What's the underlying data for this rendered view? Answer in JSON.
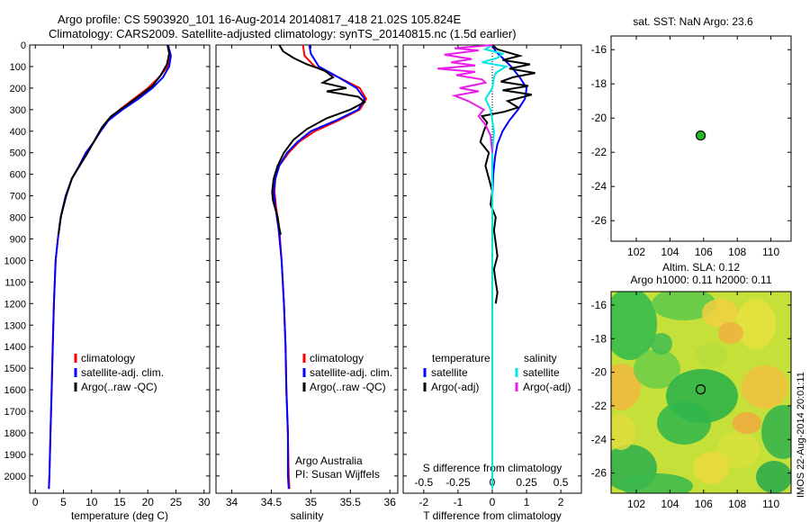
{
  "header": {
    "line1": "Argo profile: CS 5903920_101 16-Aug-2014 20140817_418 21.02S 105.824E",
    "line2": "Climatology: CARS2009. Satellite-adjusted climatology: synTS_20140815.nc (1.5d earlier)"
  },
  "watermark": "IMOS 22-Aug-2014 20:01:11",
  "colors": {
    "climatology": "#ff0000",
    "satellite": "#0000ff",
    "argo": "#000000",
    "sal_satellite": "#00e5e5",
    "sal_argo": "#e81ee8",
    "marker": "#22bb22"
  },
  "chart_data": [
    {
      "type": "line",
      "xlabel": "temperature (deg C)",
      "ylabel": "",
      "xlim": [
        -1,
        31
      ],
      "ylim": [
        2080,
        0
      ],
      "xticks": [
        "0",
        "5",
        "10",
        "15",
        "20",
        "25",
        "30"
      ],
      "yticks": [
        "0",
        "100",
        "200",
        "300",
        "400",
        "500",
        "600",
        "700",
        "800",
        "900",
        "1000",
        "1100",
        "1200",
        "1300",
        "1400",
        "1500",
        "1600",
        "1700",
        "1800",
        "1900",
        "2000"
      ],
      "legend": [
        "climatology",
        "satellite-adj. clim.",
        "Argo(..raw -QC)"
      ],
      "legend_position": "lower-center",
      "series": [
        {
          "name": "climatology",
          "color": "#ff0000",
          "points": [
            [
              23.6,
              0
            ],
            [
              23.9,
              50
            ],
            [
              23.5,
              100
            ],
            [
              22.0,
              150
            ],
            [
              20.0,
              200
            ],
            [
              17.5,
              250
            ],
            [
              15.0,
              300
            ],
            [
              12.8,
              350
            ],
            [
              11.5,
              400
            ],
            [
              10.4,
              450
            ],
            [
              9.0,
              500
            ],
            [
              7.8,
              560
            ],
            [
              6.5,
              620
            ],
            [
              5.4,
              700
            ],
            [
              4.5,
              800
            ],
            [
              4.0,
              900
            ],
            [
              3.6,
              1000
            ],
            [
              3.3,
              1200
            ],
            [
              3.1,
              1400
            ],
            [
              2.9,
              1600
            ],
            [
              2.7,
              1800
            ],
            [
              2.5,
              2000
            ],
            [
              2.4,
              2060
            ]
          ]
        },
        {
          "name": "satellite-adj. clim.",
          "color": "#0000ff",
          "points": [
            [
              23.6,
              0
            ],
            [
              24.1,
              50
            ],
            [
              23.8,
              100
            ],
            [
              22.7,
              150
            ],
            [
              20.8,
              200
            ],
            [
              18.3,
              250
            ],
            [
              15.5,
              300
            ],
            [
              13.0,
              350
            ],
            [
              11.6,
              400
            ],
            [
              10.4,
              450
            ],
            [
              9.0,
              500
            ],
            [
              7.8,
              560
            ],
            [
              6.5,
              620
            ],
            [
              5.4,
              700
            ],
            [
              4.5,
              800
            ],
            [
              4.0,
              900
            ],
            [
              3.6,
              1000
            ],
            [
              3.3,
              1200
            ],
            [
              3.1,
              1400
            ],
            [
              2.9,
              1600
            ],
            [
              2.7,
              1800
            ],
            [
              2.5,
              2000
            ],
            [
              2.4,
              2060
            ]
          ]
        },
        {
          "name": "Argo(..raw -QC)",
          "color": "#000000",
          "points": [
            [
              23.5,
              0
            ],
            [
              23.8,
              40
            ],
            [
              23.4,
              90
            ],
            [
              22.3,
              140
            ],
            [
              20.8,
              190
            ],
            [
              18.8,
              230
            ],
            [
              16.2,
              280
            ],
            [
              13.5,
              330
            ],
            [
              11.9,
              380
            ],
            [
              10.6,
              440
            ],
            [
              9.3,
              500
            ],
            [
              7.9,
              560
            ],
            [
              6.5,
              620
            ],
            [
              5.5,
              700
            ],
            [
              4.6,
              790
            ],
            [
              4.1,
              880
            ]
          ]
        }
      ]
    },
    {
      "type": "line",
      "xlabel": "salinity",
      "ylabel": "",
      "xlim": [
        33.8,
        36.1
      ],
      "ylim": [
        2080,
        0
      ],
      "xticks": [
        "34",
        "34.5",
        "35",
        "35.5",
        "36"
      ],
      "legend": [
        "climatology",
        "satellite-adj. clim.",
        "Argo(..raw -QC)"
      ],
      "legend_position": "lower-right",
      "annotations": [
        "Argo Australia",
        "PI: Susan Wijffels"
      ],
      "series": [
        {
          "name": "climatology",
          "color": "#ff0000",
          "points": [
            [
              34.9,
              0
            ],
            [
              34.92,
              50
            ],
            [
              35.05,
              100
            ],
            [
              35.35,
              150
            ],
            [
              35.62,
              200
            ],
            [
              35.7,
              250
            ],
            [
              35.62,
              300
            ],
            [
              35.35,
              350
            ],
            [
              35.05,
              400
            ],
            [
              34.85,
              450
            ],
            [
              34.72,
              500
            ],
            [
              34.6,
              560
            ],
            [
              34.55,
              620
            ],
            [
              34.54,
              680
            ],
            [
              34.56,
              750
            ],
            [
              34.6,
              850
            ],
            [
              34.63,
              1000
            ],
            [
              34.66,
              1200
            ],
            [
              34.68,
              1400
            ],
            [
              34.69,
              1600
            ],
            [
              34.71,
              1800
            ],
            [
              34.72,
              2000
            ],
            [
              34.73,
              2060
            ]
          ]
        },
        {
          "name": "satellite-adj. clim.",
          "color": "#0000ff",
          "points": [
            [
              34.98,
              0
            ],
            [
              35.0,
              40
            ],
            [
              35.1,
              100
            ],
            [
              35.35,
              150
            ],
            [
              35.58,
              200
            ],
            [
              35.68,
              250
            ],
            [
              35.6,
              300
            ],
            [
              35.32,
              350
            ],
            [
              35.0,
              400
            ],
            [
              34.83,
              450
            ],
            [
              34.7,
              500
            ],
            [
              34.6,
              560
            ],
            [
              34.55,
              620
            ],
            [
              34.53,
              680
            ],
            [
              34.55,
              750
            ],
            [
              34.59,
              850
            ],
            [
              34.63,
              1000
            ],
            [
              34.66,
              1200
            ],
            [
              34.68,
              1400
            ],
            [
              34.69,
              1600
            ],
            [
              34.71,
              1800
            ],
            [
              34.71,
              2000
            ],
            [
              34.72,
              2060
            ]
          ]
        },
        {
          "name": "Argo(..raw -QC)",
          "color": "#000000",
          "points": [
            [
              34.6,
              0
            ],
            [
              34.65,
              30
            ],
            [
              34.78,
              60
            ],
            [
              34.95,
              90
            ],
            [
              35.18,
              120
            ],
            [
              35.28,
              150
            ],
            [
              35.15,
              175
            ],
            [
              35.45,
              200
            ],
            [
              35.2,
              215
            ],
            [
              35.6,
              240
            ],
            [
              35.68,
              265
            ],
            [
              35.5,
              300
            ],
            [
              35.2,
              340
            ],
            [
              34.95,
              390
            ],
            [
              34.78,
              440
            ],
            [
              34.66,
              500
            ],
            [
              34.58,
              560
            ],
            [
              34.53,
              620
            ],
            [
              34.51,
              680
            ],
            [
              34.52,
              720
            ],
            [
              34.55,
              760
            ],
            [
              34.58,
              800
            ],
            [
              34.6,
              850
            ],
            [
              34.62,
              880
            ]
          ]
        }
      ]
    },
    {
      "type": "line",
      "xlabel": "T difference from climatology",
      "xlabel2": "S difference from climatology",
      "ylabel": "",
      "xlim": [
        -2.6,
        2.6
      ],
      "ylim": [
        2080,
        0
      ],
      "xticks": [
        "-2",
        "-1",
        "0",
        "1",
        "2"
      ],
      "xticks2": [
        "-0.5",
        "-0.25",
        "0",
        "0.25",
        "0.5"
      ],
      "legend_headers": [
        "temperature",
        "salinity"
      ],
      "legend": [
        "satellite",
        "Argo(-adj)",
        "satellite",
        "Argo(-adj)"
      ],
      "legend_position": "lower-center",
      "series": [
        {
          "name": "satellite",
          "group": "temperature",
          "color": "#0000ff",
          "points": [
            [
              0.0,
              0
            ],
            [
              0.1,
              30
            ],
            [
              0.3,
              60
            ],
            [
              0.55,
              100
            ],
            [
              0.8,
              150
            ],
            [
              1.0,
              200
            ],
            [
              0.95,
              250
            ],
            [
              0.75,
              300
            ],
            [
              0.5,
              350
            ],
            [
              0.3,
              400
            ],
            [
              0.15,
              460
            ],
            [
              0.08,
              520
            ],
            [
              0.03,
              600
            ],
            [
              0.0,
              700
            ],
            [
              0.0,
              2060
            ]
          ]
        },
        {
          "name": "Argo(-adj)",
          "group": "temperature",
          "color": "#000000",
          "points": [
            [
              0.0,
              0
            ],
            [
              0.15,
              20
            ],
            [
              0.8,
              50
            ],
            [
              0.3,
              70
            ],
            [
              1.1,
              90
            ],
            [
              0.5,
              110
            ],
            [
              1.25,
              130
            ],
            [
              0.6,
              150
            ],
            [
              0.25,
              170
            ],
            [
              1.05,
              190
            ],
            [
              0.3,
              210
            ],
            [
              1.15,
              230
            ],
            [
              0.45,
              260
            ],
            [
              0.75,
              290
            ],
            [
              0.35,
              310
            ],
            [
              -0.3,
              330
            ],
            [
              -0.15,
              360
            ],
            [
              -0.25,
              400
            ],
            [
              -0.35,
              450
            ],
            [
              -0.1,
              500
            ],
            [
              -0.2,
              560
            ],
            [
              -0.1,
              620
            ],
            [
              0.0,
              680
            ],
            [
              -0.05,
              740
            ],
            [
              0.1,
              800
            ],
            [
              0.05,
              860
            ],
            [
              0.1,
              920
            ],
            [
              0.15,
              980
            ],
            [
              0.05,
              1040
            ],
            [
              0.1,
              1100
            ],
            [
              0.15,
              1150
            ],
            [
              0.1,
              1200
            ]
          ]
        },
        {
          "name": "satellite",
          "group": "salinity",
          "color": "#00e5e5",
          "points": [
            [
              0.0,
              0
            ],
            [
              -0.2,
              20
            ],
            [
              0.3,
              40
            ],
            [
              0.15,
              60
            ],
            [
              -0.3,
              80
            ],
            [
              0.4,
              100
            ],
            [
              0.1,
              130
            ],
            [
              0.05,
              150
            ],
            [
              0.0,
              200
            ],
            [
              -0.2,
              250
            ],
            [
              -0.05,
              300
            ],
            [
              0.0,
              350
            ],
            [
              0.05,
              400
            ],
            [
              0.0,
              500
            ],
            [
              0.0,
              2060
            ]
          ]
        },
        {
          "name": "Argo(-adj)",
          "group": "salinity",
          "color": "#e81ee8",
          "points": [
            [
              0.0,
              0
            ],
            [
              -1.1,
              15
            ],
            [
              -0.4,
              25
            ],
            [
              -1.4,
              45
            ],
            [
              -0.6,
              65
            ],
            [
              -1.2,
              80
            ],
            [
              -0.5,
              95
            ],
            [
              -1.6,
              110
            ],
            [
              -0.5,
              125
            ],
            [
              -1.05,
              140
            ],
            [
              -0.3,
              160
            ],
            [
              -0.2,
              175
            ],
            [
              -0.95,
              200
            ],
            [
              -0.4,
              215
            ],
            [
              -1.1,
              235
            ],
            [
              -0.7,
              260
            ],
            [
              -0.25,
              300
            ],
            [
              -0.4,
              330
            ],
            [
              -0.2,
              370
            ],
            [
              -0.05,
              420
            ],
            [
              0.0,
              500
            ]
          ]
        }
      ]
    },
    {
      "type": "scatter",
      "title": "sat. SST: NaN Argo: 23.6",
      "xlim": [
        100.5,
        111.2
      ],
      "ylim": [
        -27.2,
        -15.2
      ],
      "xticks": [
        "102",
        "104",
        "106",
        "108",
        "110"
      ],
      "yticks": [
        "-16",
        "-18",
        "-20",
        "-22",
        "-24",
        "-26"
      ],
      "points": [
        [
          105.824,
          -21.02
        ]
      ]
    },
    {
      "type": "heatmap",
      "title": "Altim. SLA: 0.12",
      "subtitle": "Argo h1000: 0.11 h2000: 0.11",
      "xlim": [
        100.5,
        111.2
      ],
      "ylim": [
        -27.2,
        -15.2
      ],
      "xticks": [
        "102",
        "104",
        "106",
        "108",
        "110"
      ],
      "yticks": [
        "-16",
        "-18",
        "-20",
        "-22",
        "-24",
        "-26"
      ],
      "points": [
        [
          105.824,
          -21.02
        ]
      ]
    }
  ]
}
